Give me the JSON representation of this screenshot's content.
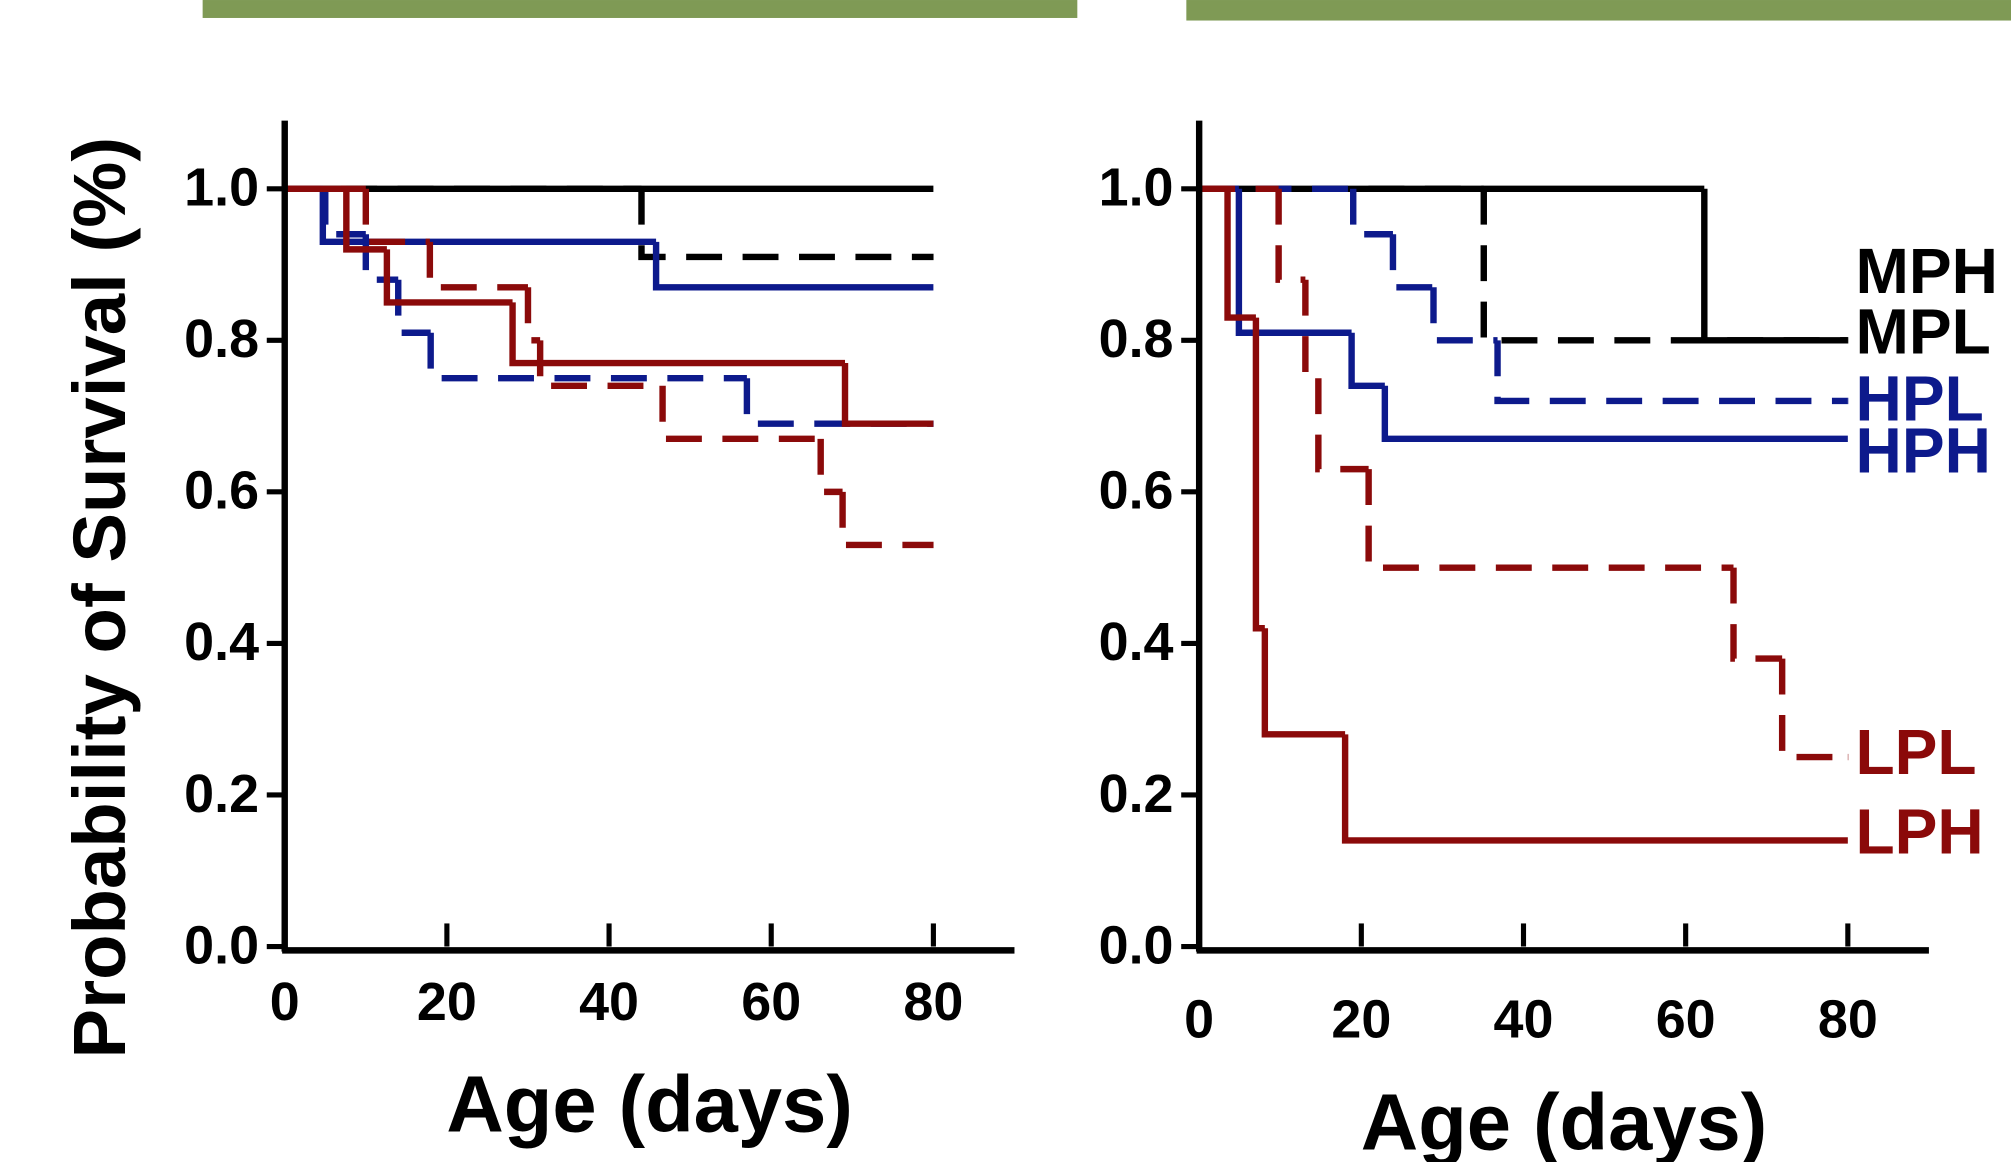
{
  "chart_data": [
    {
      "type": "step",
      "xlabel": "Age (days)",
      "ylabel": "Probability of Survival (%)",
      "xlim": [
        0,
        90
      ],
      "ylim": [
        0,
        1.09
      ],
      "xticks": [
        0,
        20,
        40,
        60,
        80
      ],
      "yticks": [
        {
          "value": 0,
          "label": "0.0"
        },
        0.2,
        0.4,
        0.6,
        0.8,
        {
          "value": 1,
          "label": "1.0"
        }
      ],
      "series": [
        {
          "color": "#000000",
          "dashed": false,
          "x": [
            0,
            80
          ],
          "values": [
            1.0,
            1.0
          ]
        },
        {
          "color": "#000000",
          "dashed": true,
          "x": [
            0,
            44,
            80
          ],
          "values": [
            1.0,
            0.91,
            0.91
          ]
        },
        {
          "color": "#0d1a8c",
          "dashed": false,
          "x": [
            0,
            4.7,
            45.8,
            80
          ],
          "values": [
            1.0,
            0.93,
            0.87,
            0.87
          ]
        },
        {
          "color": "#0d1a8c",
          "dashed": true,
          "x": [
            0,
            5,
            10,
            14,
            18,
            57,
            80
          ],
          "values": [
            1.0,
            0.94,
            0.88,
            0.81,
            0.75,
            0.69,
            0.69
          ]
        },
        {
          "color": "#8b0a0a",
          "dashed": false,
          "x": [
            0,
            7.6,
            12.6,
            28.1,
            69.1,
            80
          ],
          "values": [
            1.0,
            0.92,
            0.85,
            0.77,
            0.69,
            0.69
          ]
        },
        {
          "color": "#8b0a0a",
          "dashed": true,
          "x": [
            0,
            10,
            17.9,
            30,
            31.5,
            46.6,
            66.1,
            68.8,
            80
          ],
          "values": [
            1.0,
            0.93,
            0.87,
            0.8,
            0.74,
            0.67,
            0.6,
            0.53,
            0.53
          ]
        }
      ]
    },
    {
      "type": "step",
      "xlabel": "Age (days)",
      "xlim": [
        0,
        90
      ],
      "ylim": [
        0,
        1.09
      ],
      "xticks": [
        0,
        20,
        40,
        60,
        80
      ],
      "yticks": [
        {
          "value": 0,
          "label": "0.0"
        },
        0.2,
        0.4,
        0.6,
        0.8,
        {
          "value": 1,
          "label": "1.0"
        }
      ],
      "series": [
        {
          "name": "MPH",
          "color": "#000000",
          "dashed": false,
          "x": [
            0,
            62.3,
            80
          ],
          "values": [
            1.0,
            0.8,
            0.8
          ]
        },
        {
          "name": "MPL",
          "color": "#000000",
          "dashed": true,
          "x": [
            0,
            35.1,
            80
          ],
          "values": [
            1.0,
            0.8,
            0.8
          ]
        },
        {
          "name": "HPL",
          "color": "#0d1a8c",
          "dashed": true,
          "x": [
            0,
            19,
            23.9,
            28.9,
            36.8,
            80
          ],
          "values": [
            1.0,
            0.94,
            0.87,
            0.8,
            0.72,
            0.72
          ]
        },
        {
          "name": "HPH",
          "color": "#0d1a8c",
          "dashed": false,
          "x": [
            0,
            4.9,
            18.8,
            22.9,
            80
          ],
          "values": [
            1.0,
            0.81,
            0.74,
            0.67,
            0.67
          ]
        },
        {
          "name": "LPL",
          "color": "#8b0a0a",
          "dashed": true,
          "x": [
            0,
            9.8,
            13.1,
            14.7,
            20.9,
            65.9,
            71.9,
            80
          ],
          "values": [
            1.0,
            0.88,
            0.75,
            0.63,
            0.5,
            0.38,
            0.25,
            0.25
          ]
        },
        {
          "name": "LPH",
          "color": "#8b0a0a",
          "dashed": false,
          "x": [
            0,
            3.5,
            7,
            8.1,
            18,
            80
          ],
          "values": [
            1.0,
            0.83,
            0.42,
            0.28,
            0.14,
            0.14
          ]
        }
      ]
    }
  ]
}
